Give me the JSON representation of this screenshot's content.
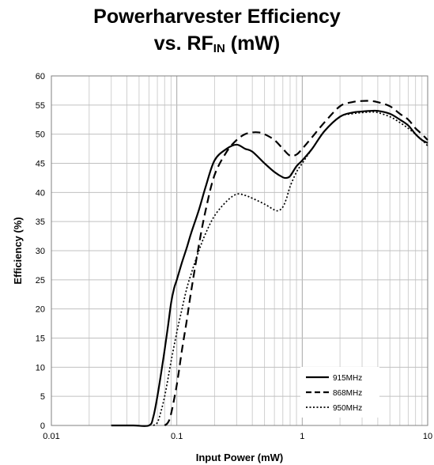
{
  "chart_data": {
    "type": "line",
    "title_line1": "Powerharvester Efficiency",
    "title_line2_prefix": "vs. RF",
    "title_line2_sub": "IN",
    "title_line2_suffix": " (mW)",
    "xlabel": "Input Power (mW)",
    "ylabel": "Efficiency (%)",
    "x_scale": "log",
    "xlim": [
      0.01,
      10
    ],
    "ylim": [
      0,
      60
    ],
    "x_ticks": [
      "0.01",
      "0.1",
      "1",
      "10"
    ],
    "y_ticks": [
      "0",
      "5",
      "10",
      "15",
      "20",
      "25",
      "30",
      "35",
      "40",
      "45",
      "50",
      "55",
      "60"
    ],
    "grid": true,
    "legend_position": "bottom-right",
    "series": [
      {
        "name": "915MHz",
        "style": "solid",
        "x": [
          0.03,
          0.045,
          0.06,
          0.065,
          0.07,
          0.075,
          0.08,
          0.085,
          0.09,
          0.095,
          0.1,
          0.11,
          0.12,
          0.13,
          0.15,
          0.17,
          0.2,
          0.25,
          0.3,
          0.35,
          0.4,
          0.5,
          0.6,
          0.7,
          0.75,
          0.8,
          0.9,
          1.0,
          1.2,
          1.5,
          2.0,
          2.5,
          3.0,
          3.5,
          4.0,
          5.0,
          6.0,
          7.0,
          8.0,
          9.0,
          10.0
        ],
        "y": [
          0,
          0,
          0,
          1.5,
          5,
          9,
          13,
          17,
          21,
          23.5,
          25,
          28,
          30.5,
          33,
          37,
          41,
          45.5,
          47.5,
          48.2,
          47.5,
          47,
          45,
          43.5,
          42.6,
          42.5,
          42.8,
          44.5,
          45.5,
          47.5,
          50.5,
          53,
          53.7,
          53.9,
          54,
          54,
          53.5,
          52.5,
          51.5,
          50,
          49,
          48.5
        ]
      },
      {
        "name": "868MHz",
        "style": "dashed",
        "x": [
          0.08,
          0.085,
          0.09,
          0.1,
          0.11,
          0.12,
          0.13,
          0.15,
          0.17,
          0.2,
          0.25,
          0.3,
          0.35,
          0.4,
          0.45,
          0.5,
          0.6,
          0.7,
          0.8,
          0.9,
          1.0,
          1.2,
          1.5,
          2.0,
          2.5,
          3.0,
          3.5,
          4.0,
          5.0,
          6.0,
          7.0,
          8.0,
          9.0,
          10.0
        ],
        "y": [
          0,
          0.5,
          2,
          7,
          13,
          18,
          23,
          31,
          37,
          43,
          47,
          49,
          50,
          50.3,
          50.3,
          50,
          49,
          47.5,
          46.3,
          46.5,
          47.5,
          49.5,
          52,
          54.8,
          55.5,
          55.7,
          55.7,
          55.5,
          54.8,
          53.5,
          52.5,
          51,
          50,
          49
        ]
      },
      {
        "name": "950MHz",
        "style": "dotted",
        "x": [
          0.065,
          0.07,
          0.075,
          0.08,
          0.085,
          0.09,
          0.1,
          0.11,
          0.12,
          0.13,
          0.15,
          0.17,
          0.2,
          0.25,
          0.3,
          0.35,
          0.4,
          0.5,
          0.6,
          0.65,
          0.7,
          0.75,
          0.8,
          0.9,
          1.0,
          1.2,
          1.5,
          2.0,
          2.5,
          3.0,
          3.5,
          4.0,
          5.0,
          6.0,
          7.0,
          8.0,
          9.0,
          10.0
        ],
        "y": [
          0,
          0.5,
          2.5,
          5,
          8,
          11,
          16,
          20,
          23.5,
          26,
          30,
          33,
          36,
          38.5,
          39.7,
          39.5,
          39,
          38,
          37,
          36.9,
          37.5,
          39,
          41,
          43.5,
          45,
          47.5,
          50.5,
          53,
          53.5,
          53.7,
          53.8,
          53.7,
          53,
          52,
          51,
          50,
          49,
          48
        ]
      }
    ]
  }
}
